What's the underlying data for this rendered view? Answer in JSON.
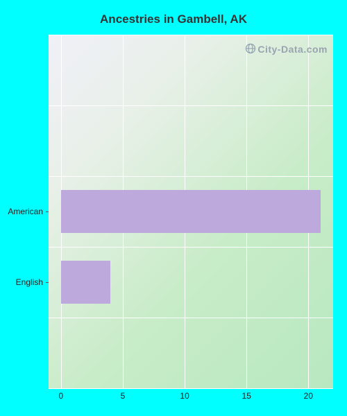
{
  "chart": {
    "type": "bar-horizontal",
    "title": "Ancestries in Gambell, AK",
    "title_fontsize": 17,
    "title_color": "#333333",
    "background_color": "#00ffff",
    "plot_gradient_from": "#f0f0f8",
    "plot_gradient_to": "#b8e8c0",
    "grid_color": "#ffffff",
    "bar_color": "#bda9db",
    "label_fontsize": 12,
    "label_color": "#222222",
    "x": {
      "min": -1,
      "max": 22,
      "ticks": [
        0,
        5,
        10,
        15,
        20
      ]
    },
    "y_row_count": 5,
    "series": [
      {
        "label": "American",
        "value": 21,
        "row_index": 2
      },
      {
        "label": "English",
        "value": 4,
        "row_index": 1
      }
    ],
    "watermark": {
      "text": "City-Data.com",
      "color": "#9aa4b0",
      "fontsize": 14,
      "icon_color": "#8fa0b0"
    }
  }
}
